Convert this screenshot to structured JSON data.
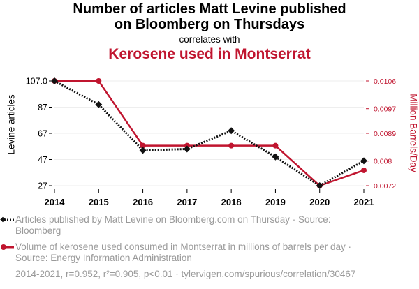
{
  "header": {
    "title_line1": "Number of articles Matt Levine published",
    "title_line2": "on Bloomberg on Thursdays",
    "subtitle": "correlates with",
    "title2": "Kerosene used in Montserrat"
  },
  "colors": {
    "series1": "#111111",
    "series2": "#c0152f",
    "grid": "#eeeeee"
  },
  "chart_data": {
    "type": "line",
    "x": [
      "2014",
      "2015",
      "2016",
      "2017",
      "2018",
      "2019",
      "2020",
      "2021"
    ],
    "series": [
      {
        "name": "Levine articles",
        "axis": "left",
        "values": [
          107,
          89,
          54,
          55,
          69,
          49,
          27,
          46
        ],
        "ylim": [
          27,
          107
        ],
        "ticks": [
          "107.0",
          "87",
          "67",
          "47",
          "27"
        ],
        "tick_values": [
          107,
          87,
          67,
          47,
          27
        ]
      },
      {
        "name": "Million Barrels/Day",
        "axis": "right",
        "values": [
          0.0106,
          0.0106,
          0.0085,
          0.0085,
          0.0085,
          0.0085,
          0.0072,
          0.0077
        ],
        "ylim": [
          0.0072,
          0.0106
        ],
        "ticks": [
          "0.0106",
          "0.0097",
          "0.0089",
          "0.008",
          "0.0072"
        ],
        "tick_values": [
          0.0106,
          0.0097,
          0.0089,
          0.008,
          0.0072
        ]
      }
    ],
    "ylabel_left": "Levine articles",
    "ylabel_right": "Million Barrels/Day",
    "grid": true
  },
  "legend": {
    "item1": "Articles published by Matt Levine on Bloomberg.com on Thursday · Source: Bloomberg",
    "item2": "Volume of kerosene used consumed in Montserrat in millions of barrels per day · Source: Energy Information Administration"
  },
  "footer": "2014-2021, r=0.952, r²=0.905, p<0.01 · tylervigen.com/spurious/correlation/30467"
}
